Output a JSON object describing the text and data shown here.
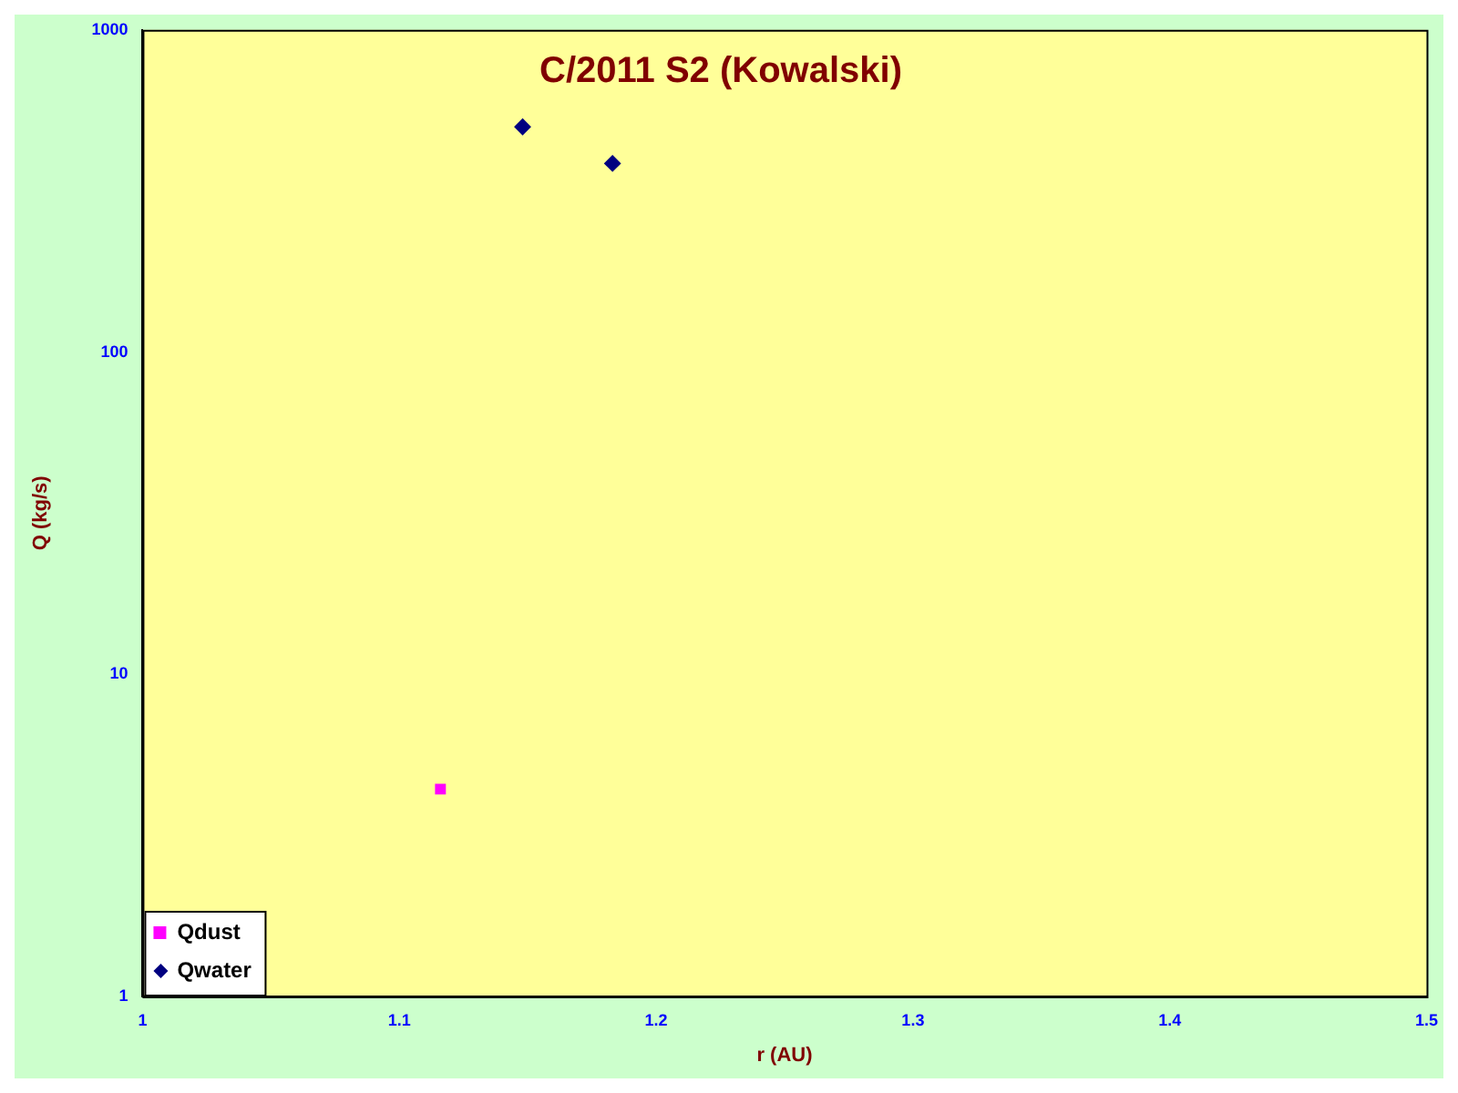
{
  "chart_data": {
    "type": "scatter",
    "title": "C/2011 S2 (Kowalski)",
    "xlabel": "r (AU)",
    "ylabel": "Q (kg/s)",
    "series": [
      {
        "name": "Qdust",
        "color": "#ff00ff",
        "marker": "square",
        "x": [
          1.116
        ],
        "values": [
          4.4
        ]
      },
      {
        "name": "Qwater",
        "color": "#000080",
        "marker": "diamond",
        "x": [
          1.148,
          1.183
        ],
        "values": [
          500,
          385
        ]
      }
    ],
    "xlim": [
      1,
      1.5
    ],
    "xticks": [
      1,
      1.1,
      1.2,
      1.3,
      1.4,
      1.5
    ],
    "ylim": [
      1,
      1000
    ],
    "yticks": [
      1,
      10,
      100,
      1000
    ],
    "log": "y",
    "grid": false,
    "legend": "bottom left"
  }
}
